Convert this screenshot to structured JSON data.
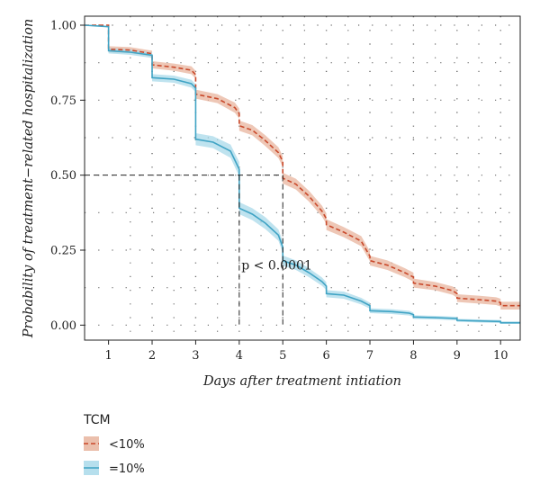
{
  "chart_data": {
    "type": "line",
    "subtype": "kaplan-meier step with confidence bands",
    "xlabel": "Days after treatment intiation",
    "ylabel": "Probability of treatment−related hospitalization",
    "xlim": [
      0.45,
      10.45
    ],
    "ylim": [
      -0.05,
      1.03
    ],
    "x_ticks": [
      1,
      2,
      3,
      4,
      5,
      6,
      7,
      8,
      9,
      10
    ],
    "y_ticks": [
      {
        "value": 0,
        "label": "0.00"
      },
      {
        "value": 0.25,
        "label": "0.25"
      },
      {
        "value": 0.5,
        "label": "0.50"
      },
      {
        "value": 0.75,
        "label": "0.75"
      },
      {
        "value": 1.0,
        "label": "1.00"
      }
    ],
    "grid": true,
    "annotation": {
      "text": "p < 0.0001",
      "x": 4.05,
      "y": 0.185
    },
    "reference_lines": {
      "y": 0.5,
      "x_low": 4.0,
      "x_high": 5.0
    },
    "legend": {
      "title": "TCM",
      "placement": "bottom-left"
    },
    "series": [
      {
        "name": "<10%",
        "color": "#c9492b",
        "band_color": "#e8b49d",
        "dash": true,
        "points": [
          [
            0.45,
            1.0
          ],
          [
            1.0,
            1.0
          ],
          [
            1.0,
            0.92
          ],
          [
            1.5,
            0.917
          ],
          [
            2.0,
            0.905
          ],
          [
            2.0,
            0.868
          ],
          [
            2.5,
            0.86
          ],
          [
            2.9,
            0.85
          ],
          [
            3.0,
            0.835
          ],
          [
            3.0,
            0.77
          ],
          [
            3.5,
            0.755
          ],
          [
            3.9,
            0.725
          ],
          [
            4.0,
            0.705
          ],
          [
            4.0,
            0.665
          ],
          [
            4.3,
            0.65
          ],
          [
            4.6,
            0.615
          ],
          [
            4.9,
            0.575
          ],
          [
            5.0,
            0.545
          ],
          [
            5.0,
            0.49
          ],
          [
            5.3,
            0.47
          ],
          [
            5.6,
            0.43
          ],
          [
            5.9,
            0.38
          ],
          [
            6.0,
            0.355
          ],
          [
            6.0,
            0.335
          ],
          [
            6.4,
            0.31
          ],
          [
            6.8,
            0.28
          ],
          [
            7.0,
            0.23
          ],
          [
            7.0,
            0.215
          ],
          [
            7.4,
            0.2
          ],
          [
            7.8,
            0.175
          ],
          [
            8.0,
            0.16
          ],
          [
            8.0,
            0.14
          ],
          [
            8.5,
            0.13
          ],
          [
            8.9,
            0.115
          ],
          [
            9.0,
            0.105
          ],
          [
            9.0,
            0.09
          ],
          [
            9.5,
            0.085
          ],
          [
            9.9,
            0.08
          ],
          [
            10.0,
            0.075
          ],
          [
            10.0,
            0.065
          ],
          [
            10.45,
            0.065
          ]
        ],
        "band": [
          [
            0.45,
            1.0,
            1.0
          ],
          [
            1.0,
            1.0,
            1.0
          ],
          [
            1.0,
            0.91,
            0.93
          ],
          [
            1.5,
            0.907,
            0.927
          ],
          [
            2.0,
            0.895,
            0.915
          ],
          [
            2.0,
            0.856,
            0.88
          ],
          [
            2.5,
            0.848,
            0.872
          ],
          [
            2.9,
            0.837,
            0.863
          ],
          [
            3.0,
            0.822,
            0.848
          ],
          [
            3.0,
            0.755,
            0.785
          ],
          [
            3.5,
            0.74,
            0.77
          ],
          [
            3.9,
            0.708,
            0.742
          ],
          [
            4.0,
            0.688,
            0.722
          ],
          [
            4.0,
            0.648,
            0.682
          ],
          [
            4.3,
            0.633,
            0.667
          ],
          [
            4.6,
            0.597,
            0.633
          ],
          [
            4.9,
            0.557,
            0.593
          ],
          [
            5.0,
            0.527,
            0.563
          ],
          [
            5.0,
            0.472,
            0.508
          ],
          [
            5.3,
            0.452,
            0.488
          ],
          [
            5.6,
            0.412,
            0.448
          ],
          [
            5.9,
            0.362,
            0.398
          ],
          [
            6.0,
            0.337,
            0.373
          ],
          [
            6.0,
            0.317,
            0.353
          ],
          [
            6.4,
            0.293,
            0.327
          ],
          [
            6.8,
            0.263,
            0.297
          ],
          [
            7.0,
            0.213,
            0.247
          ],
          [
            7.0,
            0.199,
            0.231
          ],
          [
            7.4,
            0.184,
            0.216
          ],
          [
            7.8,
            0.16,
            0.19
          ],
          [
            8.0,
            0.145,
            0.175
          ],
          [
            8.0,
            0.125,
            0.155
          ],
          [
            8.5,
            0.116,
            0.144
          ],
          [
            8.9,
            0.101,
            0.129
          ],
          [
            9.0,
            0.091,
            0.119
          ],
          [
            9.0,
            0.077,
            0.103
          ],
          [
            9.5,
            0.072,
            0.098
          ],
          [
            9.9,
            0.067,
            0.093
          ],
          [
            10.0,
            0.062,
            0.088
          ],
          [
            10.0,
            0.052,
            0.078
          ],
          [
            10.45,
            0.052,
            0.078
          ]
        ]
      },
      {
        "name": "=10%",
        "color": "#3fa3c4",
        "band_color": "#a9d9ea",
        "dash": false,
        "points": [
          [
            0.45,
            1.0
          ],
          [
            1.0,
            0.995
          ],
          [
            1.0,
            0.915
          ],
          [
            1.5,
            0.91
          ],
          [
            2.0,
            0.9
          ],
          [
            2.0,
            0.825
          ],
          [
            2.5,
            0.82
          ],
          [
            2.9,
            0.805
          ],
          [
            3.0,
            0.79
          ],
          [
            3.0,
            0.62
          ],
          [
            3.4,
            0.61
          ],
          [
            3.8,
            0.58
          ],
          [
            4.0,
            0.52
          ],
          [
            4.0,
            0.39
          ],
          [
            4.3,
            0.37
          ],
          [
            4.6,
            0.34
          ],
          [
            4.9,
            0.3
          ],
          [
            5.0,
            0.26
          ],
          [
            5.0,
            0.215
          ],
          [
            5.3,
            0.2
          ],
          [
            5.6,
            0.175
          ],
          [
            5.9,
            0.145
          ],
          [
            6.0,
            0.13
          ],
          [
            6.0,
            0.105
          ],
          [
            6.4,
            0.1
          ],
          [
            6.8,
            0.08
          ],
          [
            7.0,
            0.065
          ],
          [
            7.0,
            0.048
          ],
          [
            7.5,
            0.045
          ],
          [
            7.9,
            0.04
          ],
          [
            8.0,
            0.035
          ],
          [
            8.0,
            0.027
          ],
          [
            8.5,
            0.025
          ],
          [
            9.0,
            0.022
          ],
          [
            9.0,
            0.016
          ],
          [
            9.5,
            0.014
          ],
          [
            10.0,
            0.012
          ],
          [
            10.0,
            0.008
          ],
          [
            10.45,
            0.008
          ]
        ],
        "band": [
          [
            0.45,
            1.0,
            1.0
          ],
          [
            1.0,
            0.995,
            0.995
          ],
          [
            1.0,
            0.906,
            0.924
          ],
          [
            1.5,
            0.901,
            0.919
          ],
          [
            2.0,
            0.891,
            0.909
          ],
          [
            2.0,
            0.813,
            0.837
          ],
          [
            2.5,
            0.808,
            0.832
          ],
          [
            2.9,
            0.792,
            0.818
          ],
          [
            3.0,
            0.777,
            0.803
          ],
          [
            3.0,
            0.6,
            0.64
          ],
          [
            3.4,
            0.59,
            0.63
          ],
          [
            3.8,
            0.558,
            0.602
          ],
          [
            4.0,
            0.496,
            0.544
          ],
          [
            4.0,
            0.37,
            0.41
          ],
          [
            4.3,
            0.35,
            0.39
          ],
          [
            4.6,
            0.32,
            0.36
          ],
          [
            4.9,
            0.281,
            0.319
          ],
          [
            5.0,
            0.241,
            0.279
          ],
          [
            5.0,
            0.198,
            0.232
          ],
          [
            5.3,
            0.184,
            0.216
          ],
          [
            5.6,
            0.16,
            0.19
          ],
          [
            5.9,
            0.131,
            0.159
          ],
          [
            6.0,
            0.117,
            0.143
          ],
          [
            6.0,
            0.093,
            0.117
          ],
          [
            6.4,
            0.088,
            0.112
          ],
          [
            6.8,
            0.069,
            0.091
          ],
          [
            7.0,
            0.055,
            0.075
          ],
          [
            7.0,
            0.04,
            0.056
          ],
          [
            7.5,
            0.037,
            0.053
          ],
          [
            7.9,
            0.032,
            0.048
          ],
          [
            8.0,
            0.028,
            0.042
          ],
          [
            8.0,
            0.021,
            0.033
          ],
          [
            8.5,
            0.019,
            0.031
          ],
          [
            9.0,
            0.016,
            0.028
          ],
          [
            9.0,
            0.011,
            0.021
          ],
          [
            9.5,
            0.009,
            0.019
          ],
          [
            10.0,
            0.007,
            0.017
          ],
          [
            10.0,
            0.004,
            0.012
          ],
          [
            10.45,
            0.004,
            0.012
          ]
        ]
      }
    ]
  }
}
